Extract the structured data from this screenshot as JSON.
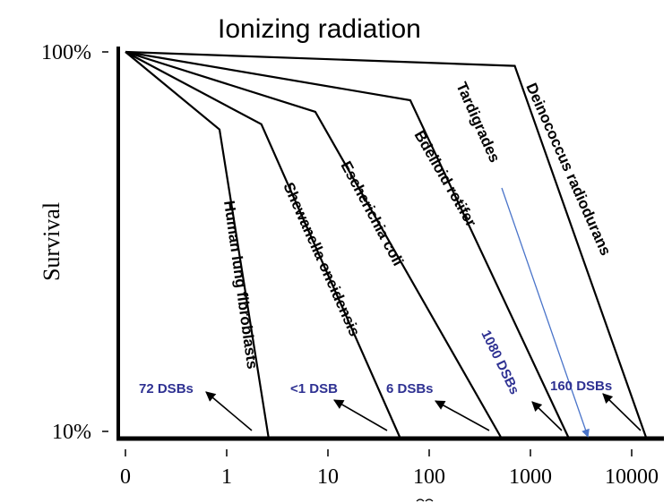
{
  "chart_data": {
    "type": "line",
    "title": "Ionizing radiation",
    "xlabel": "",
    "ylabel": "Survival",
    "x_scale": "log",
    "x_tick_labels": [
      "0",
      "1",
      "10",
      "100",
      "1000",
      "10000"
    ],
    "x_tick_values": [
      0.1,
      1,
      10,
      100,
      1000,
      10000
    ],
    "y_scale": "log",
    "y_tick_labels": [
      "100%",
      "10%"
    ],
    "y_tick_values": [
      100,
      10
    ],
    "xlim": [
      0.1,
      30000
    ],
    "ylim": [
      10,
      100
    ],
    "grid": false,
    "legend": "none (labels placed along lines)",
    "series": [
      {
        "name": "Human lung fibroblasts",
        "points": [
          [
            0.1,
            100
          ],
          [
            0.85,
            63
          ],
          [
            2.6,
            10
          ]
        ]
      },
      {
        "name": "Shewanella oneidensis",
        "points": [
          [
            0.1,
            100
          ],
          [
            2.2,
            65
          ],
          [
            52,
            10
          ]
        ]
      },
      {
        "name": "Escherichia coli",
        "points": [
          [
            0.1,
            100
          ],
          [
            7.5,
            70
          ],
          [
            520,
            10
          ]
        ]
      },
      {
        "name": "Bdelloid rotifer",
        "points": [
          [
            0.1,
            100
          ],
          [
            65,
            75
          ],
          [
            2400,
            10
          ]
        ]
      },
      {
        "name": "Deinococcus radiodurans",
        "points": [
          [
            0.1,
            100
          ],
          [
            700,
            92
          ],
          [
            14000,
            10
          ]
        ]
      }
    ],
    "tardigrades": {
      "name": "Tardigrades",
      "arrow_to_x": 3700,
      "arrow_to_y": 10
    },
    "annotations": [
      {
        "text": "72 DSBs",
        "series": "Human lung fibroblasts"
      },
      {
        "text": "<1 DSB",
        "series": "Shewanella oneidensis"
      },
      {
        "text": "6 DSBs",
        "series": "Escherichia coli"
      },
      {
        "text": "1080 DSBs",
        "series": "Bdelloid rotifer"
      },
      {
        "text": "160 DSBs",
        "series": "Deinococcus radiodurans"
      }
    ],
    "colors": {
      "lines": "#000000",
      "annotation_text": "#2e3192",
      "tardigrade_arrow": "#4a74c9"
    }
  }
}
